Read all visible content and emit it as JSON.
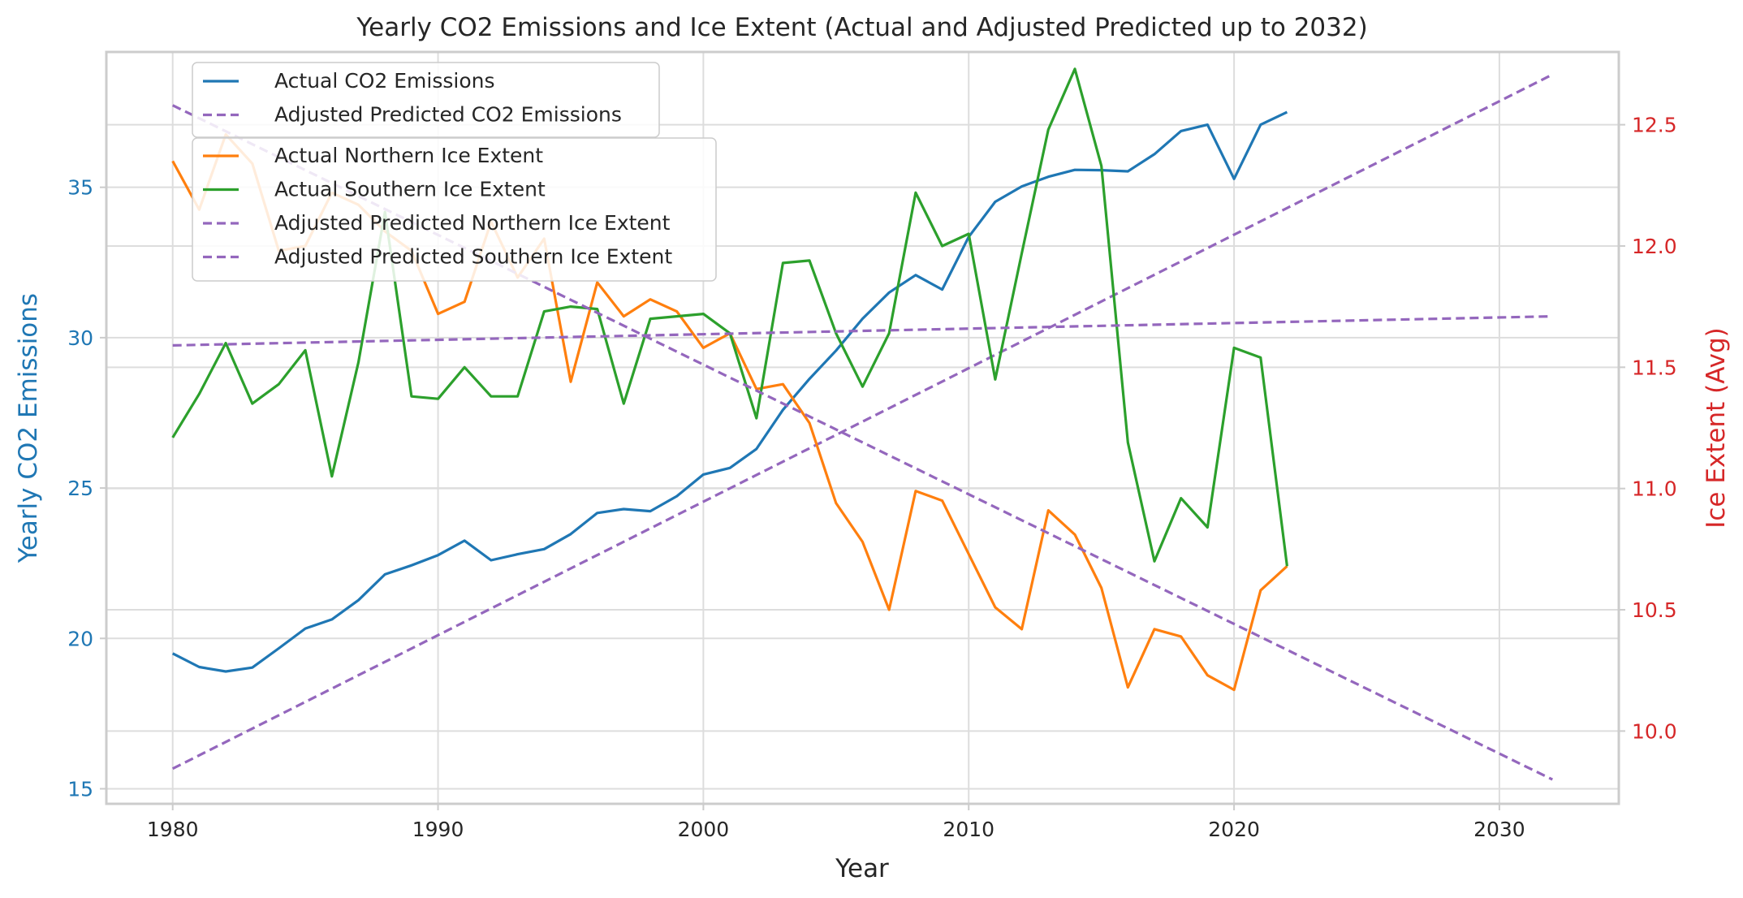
{
  "chart_data": {
    "type": "line",
    "title": "Yearly CO2 Emissions and Ice Extent (Actual and Adjusted Predicted up to 2032)",
    "xlabel": "Year",
    "ylabel_left": "Yearly CO2 Emissions",
    "ylabel_right": "Ice Extent (Avg)",
    "xlim": [
      1977.5,
      2034.5
    ],
    "ylim_left": [
      14.5,
      39.5
    ],
    "ylim_right": [
      9.7,
      12.8
    ],
    "x_ticks": [
      1980,
      1990,
      2000,
      2010,
      2020,
      2030
    ],
    "y_ticks_left": [
      15,
      20,
      25,
      30,
      35
    ],
    "y_ticks_right": [
      10.0,
      10.5,
      11.0,
      11.5,
      12.0,
      12.5
    ],
    "y_tick_labels_right": [
      "10.0",
      "10.5",
      "11.0",
      "11.5",
      "12.0",
      "12.5"
    ],
    "grid": true,
    "colors": {
      "left_axis": "#1f77b4",
      "right_axis": "#d62728",
      "grid": "#dddddd",
      "frame": "#cccccc"
    },
    "series": [
      {
        "name": "Actual CO2 Emissions",
        "axis": "left",
        "color": "#1f77b4",
        "dash": "solid",
        "x": [
          1980,
          1981,
          1982,
          1983,
          1984,
          1985,
          1986,
          1987,
          1988,
          1989,
          1990,
          1991,
          1992,
          1993,
          1994,
          1995,
          1996,
          1997,
          1998,
          1999,
          2000,
          2001,
          2002,
          2003,
          2004,
          2005,
          2006,
          2007,
          2008,
          2009,
          2010,
          2011,
          2012,
          2013,
          2014,
          2015,
          2016,
          2017,
          2018,
          2019,
          2020,
          2021,
          2022
        ],
        "values": [
          19.5,
          19.05,
          18.9,
          19.03,
          19.67,
          20.33,
          20.63,
          21.27,
          22.13,
          22.43,
          22.77,
          23.25,
          22.6,
          22.8,
          22.97,
          23.47,
          24.17,
          24.3,
          24.23,
          24.73,
          25.45,
          25.67,
          26.3,
          27.6,
          28.63,
          29.57,
          30.63,
          31.5,
          32.08,
          31.6,
          33.35,
          34.52,
          35.03,
          35.35,
          35.58,
          35.57,
          35.53,
          36.1,
          36.87,
          37.08,
          35.28,
          37.08,
          37.5
        ]
      },
      {
        "name": "Adjusted Predicted CO2 Emissions",
        "axis": "left",
        "color": "#9467bd",
        "dash": "dashed",
        "x": [
          1980,
          2032
        ],
        "values": [
          15.67,
          38.75
        ]
      },
      {
        "name": "Actual Northern Ice Extent",
        "axis": "right",
        "color": "#ff7f0e",
        "dash": "solid",
        "x": [
          1980,
          1981,
          1982,
          1983,
          1984,
          1985,
          1986,
          1987,
          1988,
          1989,
          1990,
          1991,
          1992,
          1993,
          1994,
          1995,
          1996,
          1997,
          1998,
          1999,
          2000,
          2001,
          2002,
          2003,
          2004,
          2005,
          2006,
          2007,
          2008,
          2009,
          2010,
          2011,
          2012,
          2013,
          2014,
          2015,
          2016,
          2017,
          2018,
          2019,
          2020,
          2021,
          2022
        ],
        "values": [
          12.35,
          12.15,
          12.46,
          12.34,
          11.98,
          12.0,
          12.22,
          12.17,
          12.06,
          11.98,
          11.72,
          11.77,
          12.1,
          11.87,
          12.03,
          11.44,
          11.85,
          11.71,
          11.78,
          11.73,
          11.58,
          11.64,
          11.41,
          11.43,
          11.27,
          10.94,
          10.78,
          10.5,
          10.99,
          10.95,
          10.73,
          10.51,
          10.42,
          10.91,
          10.81,
          10.59,
          10.18,
          10.42,
          10.39,
          10.23,
          10.17,
          10.58,
          10.68
        ]
      },
      {
        "name": "Actual Southern Ice Extent",
        "axis": "right",
        "color": "#2ca02c",
        "dash": "solid",
        "x": [
          1980,
          1981,
          1982,
          1983,
          1984,
          1985,
          1986,
          1987,
          1988,
          1989,
          1990,
          1991,
          1992,
          1993,
          1994,
          1995,
          1996,
          1997,
          1998,
          1999,
          2000,
          2001,
          2002,
          2003,
          2004,
          2005,
          2006,
          2007,
          2008,
          2009,
          2010,
          2011,
          2012,
          2013,
          2014,
          2015,
          2016,
          2017,
          2018,
          2019,
          2020,
          2021,
          2022
        ],
        "values": [
          11.21,
          11.39,
          11.6,
          11.35,
          11.43,
          11.57,
          11.05,
          11.52,
          12.14,
          11.38,
          11.37,
          11.5,
          11.38,
          11.38,
          11.73,
          11.75,
          11.74,
          11.35,
          11.7,
          11.71,
          11.72,
          11.64,
          11.29,
          11.93,
          11.94,
          11.64,
          11.42,
          11.64,
          12.22,
          12.0,
          12.05,
          11.45,
          11.97,
          12.48,
          12.73,
          12.33,
          11.19,
          10.7,
          10.96,
          10.84,
          11.58,
          11.54,
          10.68
        ]
      },
      {
        "name": "Adjusted Predicted Northern Ice Extent",
        "axis": "right",
        "color": "#9467bd",
        "dash": "dashed",
        "x": [
          1980,
          2032
        ],
        "values": [
          12.58,
          9.8
        ]
      },
      {
        "name": "Adjusted Predicted Southern Ice Extent",
        "axis": "right",
        "color": "#9467bd",
        "dash": "dashed",
        "x": [
          1980,
          2032
        ],
        "values": [
          11.59,
          11.71
        ]
      }
    ],
    "legends": [
      {
        "position": "upper-left",
        "entries": [
          "Actual CO2 Emissions",
          "Adjusted Predicted CO2 Emissions"
        ]
      },
      {
        "position": "upper-left-below",
        "entries": [
          "Actual Northern Ice Extent",
          "Actual Southern Ice Extent",
          "Adjusted Predicted Northern Ice Extent",
          "Adjusted Predicted Southern Ice Extent"
        ]
      }
    ]
  }
}
